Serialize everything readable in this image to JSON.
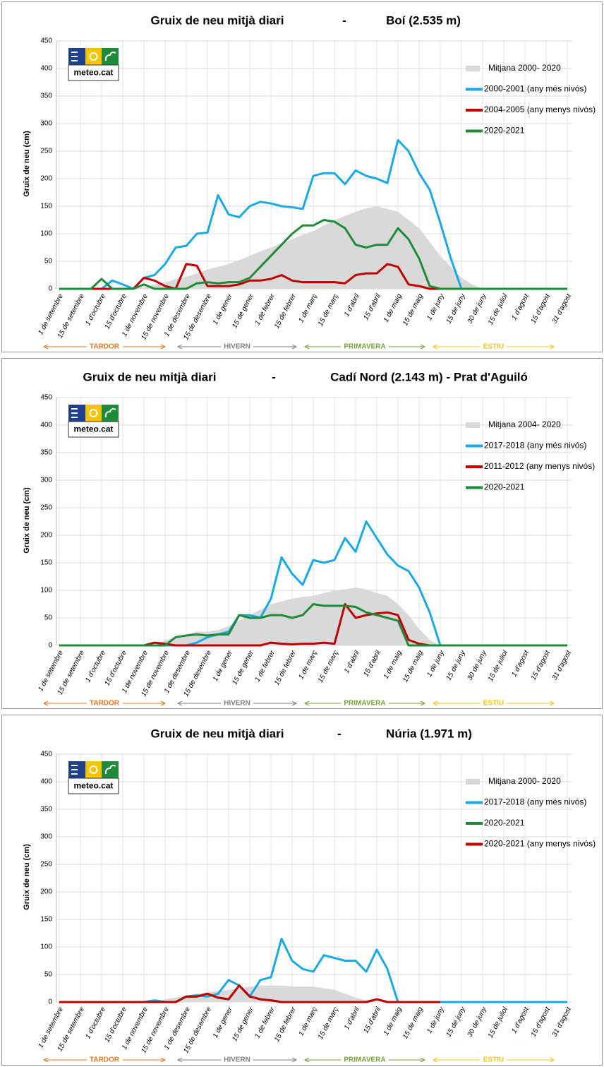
{
  "chart_data": [
    {
      "type": "line",
      "title": "Gruix de neu mitjà diari",
      "separator": "-",
      "subtitle": "Boí (2.535 m)",
      "y_label": "Gruix de neu (cm)",
      "logo": "meteo.cat",
      "categories": [
        "1 de setembre",
        null,
        "15 de setembre",
        null,
        "1 d'octubre",
        null,
        "15 d'octubre",
        null,
        "1 de novembre",
        null,
        "15 de novembre",
        null,
        "1 de desembre",
        null,
        "15 de desembre",
        null,
        "1 de gener",
        null,
        "15 de gener",
        null,
        "1 de febrer",
        null,
        "15 de febrer",
        null,
        "1 de març",
        null,
        "15 de març",
        null,
        "1 d'abril",
        null,
        "15 d'abril",
        null,
        "1 de maig",
        null,
        "15 de maig",
        null,
        "1 de juny",
        null,
        "15 de juny",
        null,
        "30 de juny",
        null,
        "15 de juliol",
        null,
        "1 d'agost",
        null,
        "15 d'agost",
        null,
        "31 d'agost"
      ],
      "ylim": [
        0,
        450
      ],
      "yticks": [
        0,
        50,
        100,
        150,
        200,
        250,
        300,
        350,
        400,
        450
      ],
      "grid": true,
      "series": [
        {
          "name": "Mitjana  2000- 2020",
          "color": "#d9d9d9",
          "style": "area",
          "values": [
            0,
            0,
            0,
            0,
            0,
            0,
            0,
            0,
            3,
            8,
            12,
            18,
            22,
            28,
            35,
            40,
            45,
            52,
            60,
            68,
            75,
            82,
            90,
            98,
            105,
            115,
            125,
            132,
            140,
            146,
            150,
            145,
            140,
            125,
            110,
            85,
            60,
            40,
            20,
            8,
            0,
            0,
            0,
            0,
            0,
            0,
            0,
            0,
            0
          ]
        },
        {
          "name": "2000-2001 (any més nivós)",
          "color": "#19a9e3",
          "style": "line",
          "values": [
            0,
            0,
            0,
            0,
            0,
            15,
            8,
            0,
            20,
            25,
            45,
            75,
            78,
            100,
            102,
            170,
            135,
            130,
            150,
            158,
            155,
            150,
            148,
            145,
            205,
            210,
            210,
            190,
            215,
            205,
            200,
            192,
            270,
            250,
            210,
            180,
            120,
            55,
            0,
            0,
            0,
            0,
            0,
            0,
            0,
            0,
            0,
            0,
            0
          ]
        },
        {
          "name": "2004-2005 (any menys nivós)",
          "color": "#c00000",
          "style": "line",
          "values": [
            0,
            0,
            0,
            0,
            0,
            0,
            0,
            0,
            20,
            15,
            5,
            0,
            45,
            42,
            5,
            5,
            5,
            8,
            15,
            15,
            18,
            25,
            15,
            12,
            12,
            12,
            12,
            10,
            25,
            28,
            28,
            45,
            40,
            8,
            5,
            0,
            0,
            0,
            0,
            0,
            0,
            0,
            0,
            0,
            0,
            0,
            0,
            0,
            0
          ]
        },
        {
          "name": "2020-2021",
          "color": "#1e8b3a",
          "style": "line",
          "values": [
            0,
            0,
            0,
            0,
            18,
            0,
            0,
            0,
            8,
            0,
            0,
            0,
            0,
            10,
            12,
            10,
            12,
            12,
            20,
            40,
            60,
            80,
            100,
            115,
            115,
            125,
            122,
            110,
            80,
            75,
            80,
            80,
            110,
            90,
            55,
            5,
            0,
            0,
            0,
            0,
            0,
            0,
            0,
            0,
            0,
            0,
            0,
            0,
            0
          ]
        }
      ],
      "seasons": [
        {
          "name": "TARDOR",
          "color": "#e87722"
        },
        {
          "name": "HIVERN",
          "color": "#7f7f7f"
        },
        {
          "name": "PRIMAVERA",
          "color": "#77a33a"
        },
        {
          "name": "ESTIU",
          "color": "#f5c518"
        }
      ]
    },
    {
      "type": "line",
      "title": "Gruix de neu mitjà diari",
      "separator": "-",
      "subtitle": "Cadí Nord (2.143 m) - Prat d'Aguiló",
      "y_label": "Gruix de neu (cm)",
      "logo": "meteo.cat",
      "categories": [
        "1 de setembre",
        null,
        "15 de setembre",
        null,
        "1 d'octubre",
        null,
        "15 d'octubre",
        null,
        "1 de novembre",
        null,
        "15 de novembre",
        null,
        "1 de desembre",
        null,
        "15 de desembre",
        null,
        "1 de gener",
        null,
        "15 de gener",
        null,
        "1 de febrer",
        null,
        "15 de febrer",
        null,
        "1 de març",
        null,
        "15 de març",
        null,
        "1 d'abril",
        null,
        "15 d'abril",
        null,
        "1 de maig",
        null,
        "15 de maig",
        null,
        "1 de juny",
        null,
        "15 de juny",
        null,
        "30 de juny",
        null,
        "15 de juliol",
        null,
        "1 d'agost",
        null,
        "15 d'agost",
        null,
        "31 d'agost"
      ],
      "ylim": [
        0,
        450
      ],
      "yticks": [
        0,
        50,
        100,
        150,
        200,
        250,
        300,
        350,
        400,
        450
      ],
      "grid": true,
      "series": [
        {
          "name": "Mitjana  2004- 2020",
          "color": "#d9d9d9",
          "style": "area",
          "values": [
            0,
            0,
            0,
            0,
            0,
            0,
            0,
            0,
            0,
            0,
            10,
            15,
            20,
            25,
            25,
            28,
            35,
            45,
            55,
            65,
            75,
            80,
            85,
            88,
            90,
            95,
            100,
            102,
            105,
            102,
            95,
            90,
            75,
            55,
            30,
            10,
            0,
            0,
            0,
            0,
            0,
            0,
            0,
            0,
            0,
            0,
            0,
            0,
            0
          ]
        },
        {
          "name": "2017-2018 (any més nivós)",
          "color": "#19a9e3",
          "style": "line",
          "values": [
            0,
            0,
            0,
            0,
            0,
            0,
            0,
            0,
            0,
            0,
            0,
            0,
            0,
            5,
            15,
            20,
            25,
            55,
            55,
            50,
            85,
            160,
            130,
            110,
            155,
            150,
            155,
            195,
            170,
            225,
            195,
            165,
            145,
            135,
            105,
            60,
            0,
            0,
            0,
            0,
            0,
            0,
            0,
            0,
            0,
            0,
            0,
            0,
            0
          ]
        },
        {
          "name": "2011-2012 (any menys nivós)",
          "color": "#c00000",
          "style": "line",
          "values": [
            0,
            0,
            0,
            0,
            0,
            0,
            0,
            0,
            0,
            5,
            3,
            0,
            0,
            0,
            0,
            0,
            0,
            0,
            0,
            0,
            5,
            3,
            2,
            3,
            3,
            5,
            3,
            75,
            50,
            55,
            58,
            60,
            55,
            10,
            3,
            0,
            0,
            0,
            0,
            0,
            0,
            0,
            0,
            0,
            0,
            0,
            0,
            0,
            0
          ]
        },
        {
          "name": "2020-2021",
          "color": "#1e8b3a",
          "style": "line",
          "values": [
            0,
            0,
            0,
            0,
            0,
            0,
            0,
            0,
            0,
            0,
            0,
            15,
            18,
            20,
            18,
            20,
            20,
            55,
            50,
            50,
            55,
            55,
            50,
            55,
            75,
            72,
            72,
            72,
            70,
            60,
            55,
            50,
            45,
            0,
            0,
            0,
            0,
            0,
            0,
            0,
            0,
            0,
            0,
            0,
            0,
            0,
            0,
            0,
            0
          ]
        }
      ],
      "seasons": [
        {
          "name": "TARDOR",
          "color": "#e87722"
        },
        {
          "name": "HIVERN",
          "color": "#7f7f7f"
        },
        {
          "name": "PRIMAVERA",
          "color": "#77a33a"
        },
        {
          "name": "ESTIU",
          "color": "#f5c518"
        }
      ]
    },
    {
      "type": "line",
      "title": "Gruix de neu mitjà diari",
      "separator": "-",
      "subtitle": "Núria (1.971 m)",
      "y_label": "Gruix de neu (cm)",
      "logo": "meteo.cat",
      "categories": [
        "1 de setembre",
        null,
        "15 de setembre",
        null,
        "1 d'octubre",
        null,
        "15 d'octubre",
        null,
        "1 de novembre",
        null,
        "15 de novembre",
        null,
        "1 de desembre",
        null,
        "15 de desembre",
        null,
        "1 de gener",
        null,
        "15 de gener",
        null,
        "1 de febrer",
        null,
        "15 de febrer",
        null,
        "1 de març",
        null,
        "15 de març",
        null,
        "1 d'abril",
        null,
        "15 d'abril",
        null,
        "1 de maig",
        null,
        "15 de maig",
        null,
        "1 de juny",
        null,
        "15 de juny",
        null,
        "30 de juny",
        null,
        "15 de juliol",
        null,
        "1 d'agost",
        null,
        "15 d'agost",
        null,
        "31 d'agost"
      ],
      "ylim": [
        0,
        450
      ],
      "yticks": [
        0,
        50,
        100,
        150,
        200,
        250,
        300,
        350,
        400,
        450
      ],
      "grid": true,
      "series": [
        {
          "name": "Mitjana  2000- 2020",
          "color": "#d9d9d9",
          "style": "area",
          "values": [
            0,
            0,
            0,
            0,
            0,
            0,
            0,
            0,
            0,
            0,
            5,
            8,
            12,
            15,
            18,
            20,
            22,
            25,
            28,
            30,
            30,
            30,
            28,
            28,
            28,
            25,
            22,
            15,
            8,
            3,
            0,
            0,
            0,
            0,
            0,
            0,
            0,
            0,
            0,
            0,
            0,
            0,
            0,
            0,
            0,
            0,
            0,
            0,
            0
          ]
        },
        {
          "name": "2017-2018 (any més nivós)",
          "color": "#19a9e3",
          "style": "line",
          "values": [
            0,
            0,
            0,
            0,
            0,
            0,
            0,
            0,
            0,
            3,
            0,
            0,
            10,
            12,
            10,
            15,
            40,
            30,
            10,
            40,
            45,
            115,
            75,
            60,
            55,
            85,
            80,
            75,
            75,
            55,
            95,
            60,
            0,
            0,
            0,
            0,
            0,
            0,
            0,
            0,
            0,
            0,
            0,
            0,
            0,
            0,
            0,
            0,
            0
          ]
        },
        {
          "name": "2020-2021",
          "color": "#1e8b3a",
          "style": "line",
          "values": [
            0,
            0,
            0,
            0,
            0,
            0,
            0,
            0,
            0,
            0,
            0,
            0,
            10,
            10,
            15,
            8,
            5,
            30,
            10,
            5,
            3,
            0,
            0,
            0,
            0,
            0,
            0,
            0,
            0,
            0,
            5,
            0,
            0,
            0,
            0,
            0,
            0,
            null,
            null,
            null,
            null,
            null,
            null,
            null,
            null,
            null,
            null,
            null,
            null
          ]
        },
        {
          "name": "2020-2021 (any menys nivós)",
          "color": "#c00000",
          "style": "line",
          "values": [
            0,
            0,
            0,
            0,
            0,
            0,
            0,
            0,
            0,
            0,
            0,
            0,
            10,
            10,
            15,
            8,
            5,
            30,
            10,
            5,
            3,
            0,
            0,
            0,
            0,
            0,
            0,
            0,
            0,
            0,
            5,
            0,
            0,
            0,
            0,
            0,
            0,
            null,
            null,
            null,
            null,
            null,
            null,
            null,
            null,
            null,
            null,
            null,
            null
          ]
        }
      ],
      "seasons": [
        {
          "name": "TARDOR",
          "color": "#e87722"
        },
        {
          "name": "HIVERN",
          "color": "#7f7f7f"
        },
        {
          "name": "PRIMAVERA",
          "color": "#77a33a"
        },
        {
          "name": "ESTIU",
          "color": "#f5c518"
        }
      ]
    }
  ]
}
